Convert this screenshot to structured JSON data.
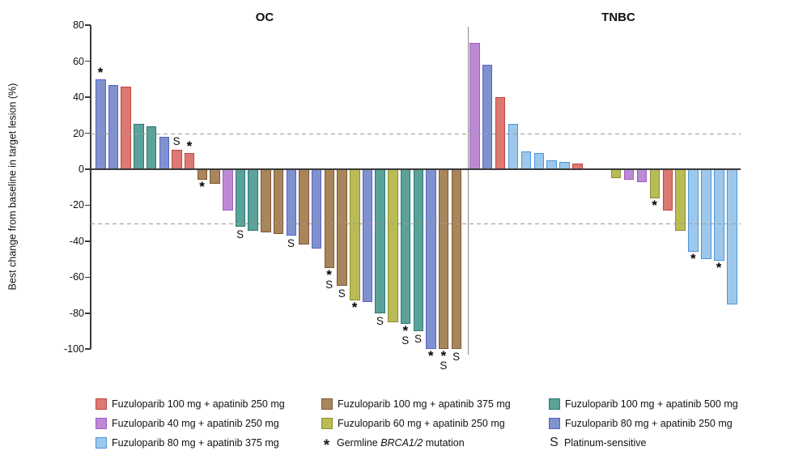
{
  "chart_data": {
    "type": "bar",
    "subtype": "waterfall",
    "ylabel": "Best change from baseline in target lesion (%)",
    "ylim": [
      -100,
      80
    ],
    "yticks": [
      80,
      60,
      40,
      20,
      0,
      -20,
      -40,
      -60,
      -80,
      -100
    ],
    "ref_lines": [
      20,
      -30
    ],
    "grid": "off",
    "legend_position": "bottom",
    "marker_star": "*",
    "marker_s": "S",
    "groups": {
      "fz100_ap250": {
        "label": "Fuzuloparib 100 mg + apatinib 250 mg",
        "fill": "#DC7972",
        "border": "#C2453E"
      },
      "fz100_ap375": {
        "label": "Fuzuloparib 100 mg + apatinib 375 mg",
        "fill": "#A9855B",
        "border": "#7D5A33"
      },
      "fz100_ap500": {
        "label": "Fuzuloparib 100 mg + apatinib 500 mg",
        "fill": "#5BA29B",
        "border": "#297A73"
      },
      "fz40_ap250": {
        "label": "Fuzuloparib 40 mg + apatinib 250 mg",
        "fill": "#BC8AD3",
        "border": "#A25CC9"
      },
      "fz60_ap250": {
        "label": "Fuzuloparib 60 mg + apatinib 250 mg",
        "fill": "#B9BC55",
        "border": "#8A8E2E"
      },
      "fz80_ap250": {
        "label": "Fuzuloparib 80 mg + apatinib 250 mg",
        "fill": "#8092CD",
        "border": "#5A60C8"
      },
      "fz80_ap375": {
        "label": "Fuzuloparib 80 mg + apatinib 375 mg",
        "fill": "#9DC7EB",
        "border": "#4D94D9"
      }
    },
    "panels": [
      {
        "title": "OC",
        "bars": [
          {
            "value": 50,
            "group": "fz80_ap250",
            "marks": [
              "*"
            ]
          },
          {
            "value": 47,
            "group": "fz80_ap250"
          },
          {
            "value": 46,
            "group": "fz100_ap250"
          },
          {
            "value": 25,
            "group": "fz100_ap500"
          },
          {
            "value": 24,
            "group": "fz100_ap500"
          },
          {
            "value": 18,
            "group": "fz80_ap250"
          },
          {
            "value": 11,
            "group": "fz100_ap250",
            "marks": [
              "S"
            ]
          },
          {
            "value": 9,
            "group": "fz100_ap250",
            "marks": [
              "*"
            ]
          },
          {
            "value": -6,
            "group": "fz100_ap375",
            "marks": [
              "*"
            ]
          },
          {
            "value": -8,
            "group": "fz100_ap375"
          },
          {
            "value": -23,
            "group": "fz40_ap250"
          },
          {
            "value": -32,
            "group": "fz100_ap500",
            "marks": [
              "S"
            ]
          },
          {
            "value": -34,
            "group": "fz100_ap500"
          },
          {
            "value": -35,
            "group": "fz100_ap375"
          },
          {
            "value": -36,
            "group": "fz100_ap375"
          },
          {
            "value": -37,
            "group": "fz80_ap250",
            "marks": [
              "S"
            ]
          },
          {
            "value": -42,
            "group": "fz100_ap375"
          },
          {
            "value": -44,
            "group": "fz80_ap250"
          },
          {
            "value": -55,
            "group": "fz100_ap375",
            "marks": [
              "*",
              "S"
            ]
          },
          {
            "value": -65,
            "group": "fz100_ap375",
            "marks": [
              "S"
            ]
          },
          {
            "value": -73,
            "group": "fz60_ap250",
            "marks": [
              "*"
            ]
          },
          {
            "value": -74,
            "group": "fz80_ap250"
          },
          {
            "value": -80,
            "group": "fz100_ap500",
            "marks": [
              "S"
            ]
          },
          {
            "value": -85,
            "group": "fz60_ap250"
          },
          {
            "value": -86,
            "group": "fz100_ap500",
            "marks": [
              "*",
              "S"
            ]
          },
          {
            "value": -90,
            "group": "fz100_ap500",
            "marks": [
              "S"
            ]
          },
          {
            "value": -100,
            "group": "fz80_ap250",
            "marks": [
              "*"
            ]
          },
          {
            "value": -100,
            "group": "fz100_ap375",
            "marks": [
              "*",
              "S"
            ]
          },
          {
            "value": -100,
            "group": "fz100_ap375",
            "marks": [
              "S"
            ]
          }
        ]
      },
      {
        "title": "TNBC",
        "bars": [
          {
            "value": 70,
            "group": "fz40_ap250"
          },
          {
            "value": 58,
            "group": "fz80_ap250"
          },
          {
            "value": 40,
            "group": "fz100_ap250"
          },
          {
            "value": 25,
            "group": "fz80_ap375"
          },
          {
            "value": 10,
            "group": "fz80_ap375"
          },
          {
            "value": 9,
            "group": "fz80_ap375"
          },
          {
            "value": 5,
            "group": "fz80_ap375"
          },
          {
            "value": 4,
            "group": "fz80_ap375"
          },
          {
            "value": 3,
            "group": "fz100_ap250"
          },
          null,
          null,
          {
            "value": -5,
            "group": "fz60_ap250"
          },
          {
            "value": -6,
            "group": "fz40_ap250"
          },
          {
            "value": -7,
            "group": "fz40_ap250"
          },
          {
            "value": -16,
            "group": "fz60_ap250",
            "marks": [
              "*"
            ]
          },
          {
            "value": -23,
            "group": "fz100_ap250"
          },
          {
            "value": -34,
            "group": "fz60_ap250"
          },
          {
            "value": -46,
            "group": "fz80_ap375",
            "marks": [
              "*"
            ]
          },
          {
            "value": -50,
            "group": "fz80_ap375"
          },
          {
            "value": -51,
            "group": "fz80_ap375",
            "marks": [
              "*"
            ]
          },
          {
            "value": -75,
            "group": "fz80_ap375"
          }
        ]
      }
    ],
    "star_legend": {
      "symbol": "*",
      "pre": "Germline ",
      "italic": "BRCA1/2",
      "post": " mutation"
    },
    "s_legend": {
      "symbol": "S",
      "label": "Platinum-sensitive"
    }
  },
  "legend": {
    "columns": [
      {
        "items": [
          {
            "type": "swatch",
            "group": "fz100_ap250"
          },
          {
            "type": "swatch",
            "group": "fz40_ap250"
          },
          {
            "type": "swatch",
            "group": "fz80_ap375"
          }
        ]
      },
      {
        "items": [
          {
            "type": "swatch",
            "group": "fz100_ap375"
          },
          {
            "type": "swatch",
            "group": "fz60_ap250"
          },
          {
            "type": "star"
          }
        ]
      },
      {
        "items": [
          {
            "type": "swatch",
            "group": "fz100_ap500"
          },
          {
            "type": "swatch",
            "group": "fz80_ap250"
          },
          {
            "type": "s"
          }
        ]
      }
    ]
  }
}
